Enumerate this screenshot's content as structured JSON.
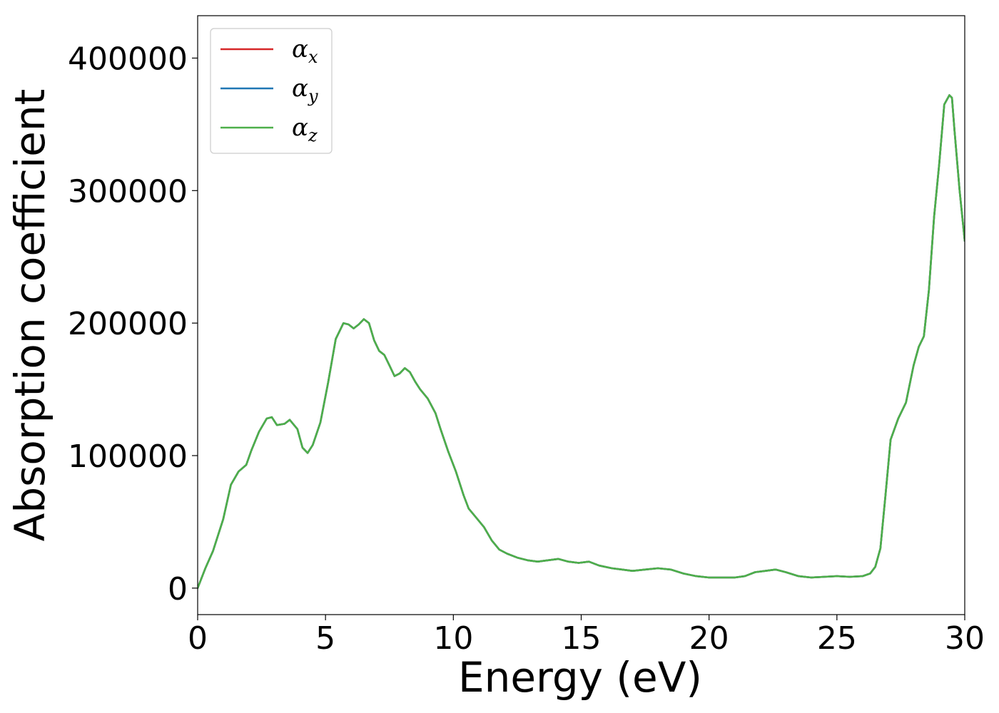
{
  "chart_data": {
    "type": "line",
    "xlabel": "Energy (eV)",
    "ylabel": "Absorption coefficient",
    "xlim": [
      0,
      30
    ],
    "ylim": [
      -20000,
      432000
    ],
    "xticks": [
      0,
      5,
      10,
      15,
      20,
      25,
      30
    ],
    "xtick_labels": [
      "0",
      "5",
      "10",
      "15",
      "20",
      "25",
      "30"
    ],
    "yticks": [
      0,
      100000,
      200000,
      300000,
      400000
    ],
    "ytick_labels": [
      "0",
      "100000",
      "200000",
      "300000",
      "400000"
    ],
    "grid": false,
    "legend": {
      "position": "upper-left",
      "entries": [
        {
          "symbol": "α",
          "sub": "x",
          "color": "#d62728"
        },
        {
          "symbol": "α",
          "sub": "y",
          "color": "#1f77b4"
        },
        {
          "symbol": "α",
          "sub": "z",
          "color": "#4daf4a"
        }
      ]
    },
    "x": [
      0,
      0.3,
      0.6,
      1.0,
      1.3,
      1.6,
      1.9,
      2.1,
      2.4,
      2.7,
      2.9,
      3.1,
      3.4,
      3.6,
      3.9,
      4.1,
      4.3,
      4.5,
      4.8,
      5.1,
      5.4,
      5.7,
      5.9,
      6.1,
      6.3,
      6.5,
      6.7,
      6.9,
      7.1,
      7.3,
      7.5,
      7.7,
      7.9,
      8.1,
      8.3,
      8.5,
      8.7,
      9.0,
      9.3,
      9.5,
      9.8,
      10.1,
      10.4,
      10.6,
      10.9,
      11.2,
      11.5,
      11.8,
      12.1,
      12.5,
      12.9,
      13.3,
      13.7,
      14.1,
      14.5,
      14.9,
      15.3,
      15.7,
      16.2,
      16.6,
      17.0,
      17.5,
      18.0,
      18.5,
      19.0,
      19.5,
      20.0,
      20.5,
      21.0,
      21.4,
      21.8,
      22.2,
      22.6,
      23.0,
      23.5,
      24.0,
      24.5,
      25.0,
      25.5,
      26.0,
      26.3,
      26.5,
      26.7,
      26.9,
      27.1,
      27.4,
      27.7,
      28.0,
      28.2,
      28.4,
      28.6,
      28.8,
      29.0,
      29.2,
      29.4,
      29.5,
      29.6,
      29.8,
      30.0
    ],
    "series": [
      {
        "name": "αx",
        "color": "#d62728",
        "values": [
          0,
          15000,
          28000,
          52000,
          78000,
          88000,
          93000,
          104000,
          118000,
          128000,
          129000,
          123000,
          124000,
          127000,
          120000,
          106000,
          102000,
          108000,
          125000,
          155000,
          188000,
          200000,
          199000,
          196000,
          199000,
          203000,
          200000,
          187000,
          179000,
          176000,
          168000,
          160000,
          162000,
          166000,
          163000,
          156000,
          150000,
          143000,
          132000,
          120000,
          103000,
          88000,
          70000,
          60000,
          53000,
          46000,
          36000,
          29000,
          26000,
          23000,
          21000,
          20000,
          21000,
          22000,
          20000,
          19000,
          20000,
          17000,
          15000,
          14000,
          13000,
          14000,
          15000,
          14000,
          11000,
          9000,
          8000,
          8000,
          8000,
          9000,
          12000,
          13000,
          14000,
          12000,
          9000,
          8000,
          8500,
          9000,
          8500,
          9000,
          11000,
          16000,
          30000,
          70000,
          112000,
          128000,
          140000,
          168000,
          182000,
          190000,
          225000,
          280000,
          320000,
          365000,
          372000,
          370000,
          345000,
          300000,
          262000
        ]
      },
      {
        "name": "αy",
        "color": "#1f77b4",
        "values": [
          0,
          15000,
          28000,
          52000,
          78000,
          88000,
          93000,
          104000,
          118000,
          128000,
          129000,
          123000,
          124000,
          127000,
          120000,
          106000,
          102000,
          108000,
          125000,
          155000,
          188000,
          200000,
          199000,
          196000,
          199000,
          203000,
          200000,
          187000,
          179000,
          176000,
          168000,
          160000,
          162000,
          166000,
          163000,
          156000,
          150000,
          143000,
          132000,
          120000,
          103000,
          88000,
          70000,
          60000,
          53000,
          46000,
          36000,
          29000,
          26000,
          23000,
          21000,
          20000,
          21000,
          22000,
          20000,
          19000,
          20000,
          17000,
          15000,
          14000,
          13000,
          14000,
          15000,
          14000,
          11000,
          9000,
          8000,
          8000,
          8000,
          9000,
          12000,
          13000,
          14000,
          12000,
          9000,
          8000,
          8500,
          9000,
          8500,
          9000,
          11000,
          16000,
          30000,
          70000,
          112000,
          128000,
          140000,
          168000,
          182000,
          190000,
          225000,
          280000,
          320000,
          365000,
          372000,
          370000,
          345000,
          300000,
          262000
        ]
      },
      {
        "name": "αz",
        "color": "#4daf4a",
        "values": [
          0,
          15000,
          28000,
          52000,
          78000,
          88000,
          93000,
          104000,
          118000,
          128000,
          129000,
          123000,
          124000,
          127000,
          120000,
          106000,
          102000,
          108000,
          125000,
          155000,
          188000,
          200000,
          199000,
          196000,
          199000,
          203000,
          200000,
          187000,
          179000,
          176000,
          168000,
          160000,
          162000,
          166000,
          163000,
          156000,
          150000,
          143000,
          132000,
          120000,
          103000,
          88000,
          70000,
          60000,
          53000,
          46000,
          36000,
          29000,
          26000,
          23000,
          21000,
          20000,
          21000,
          22000,
          20000,
          19000,
          20000,
          17000,
          15000,
          14000,
          13000,
          14000,
          15000,
          14000,
          11000,
          9000,
          8000,
          8000,
          8000,
          9000,
          12000,
          13000,
          14000,
          12000,
          9000,
          8000,
          8500,
          9000,
          8500,
          9000,
          11000,
          16000,
          30000,
          70000,
          112000,
          128000,
          140000,
          168000,
          182000,
          190000,
          225000,
          280000,
          320000,
          365000,
          372000,
          370000,
          345000,
          300000,
          262000
        ]
      }
    ]
  }
}
